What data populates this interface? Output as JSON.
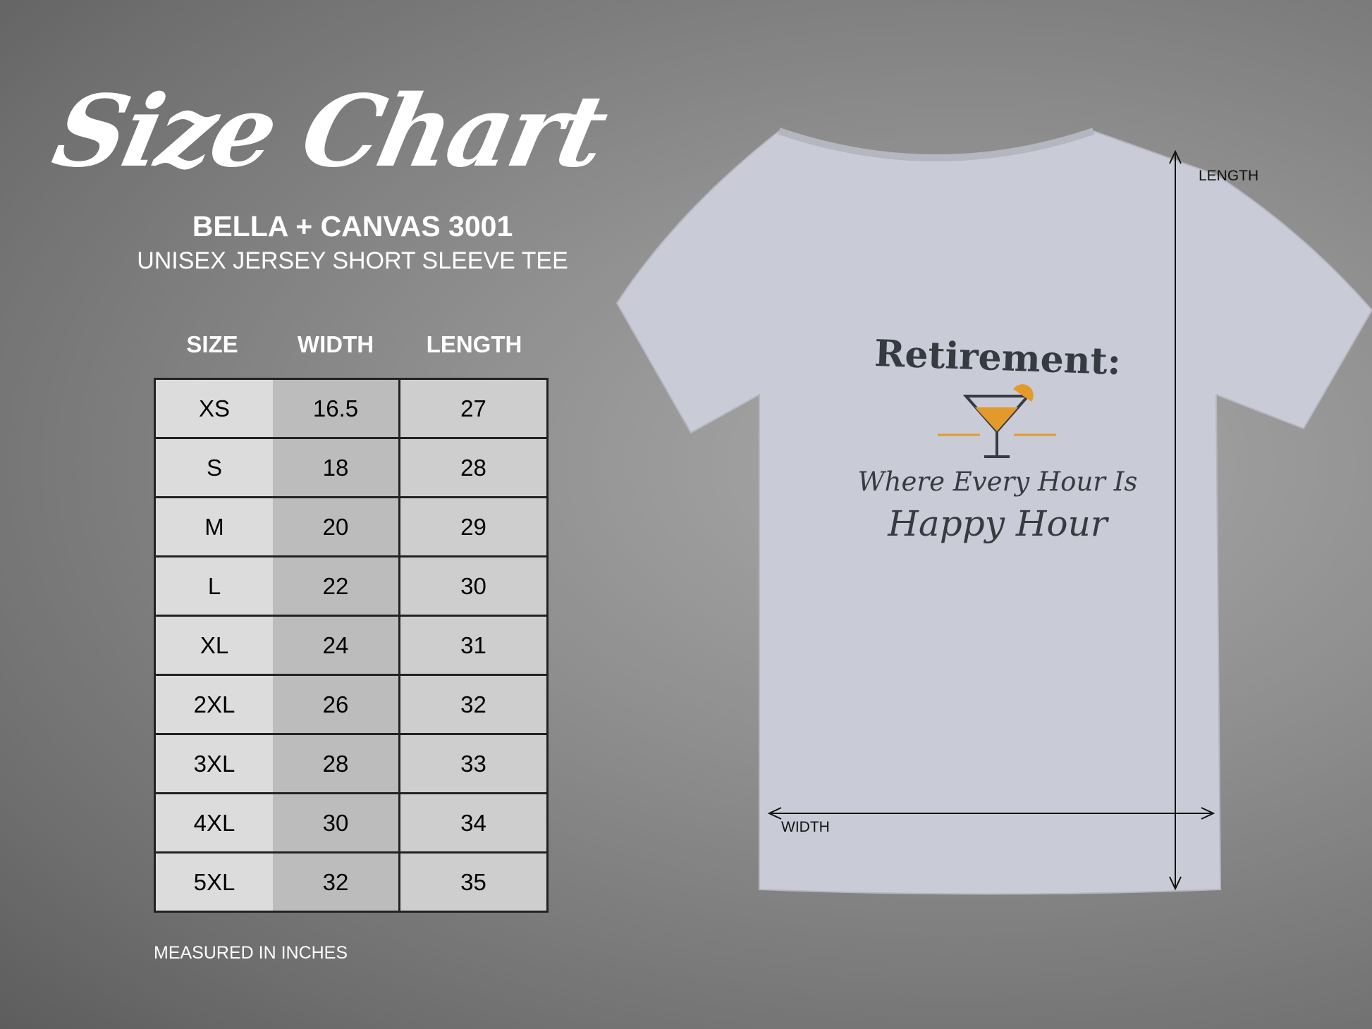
{
  "title": "Size Chart",
  "brand": "BELLA + CANVAS 3001",
  "model": "UNISEX JERSEY SHORT SLEEVE TEE",
  "headers": [
    "SIZE",
    "WIDTH",
    "LENGTH"
  ],
  "rows": [
    [
      "XS",
      "16.5",
      "27"
    ],
    [
      "S",
      "18",
      "28"
    ],
    [
      "M",
      "20",
      "29"
    ],
    [
      "L",
      "22",
      "30"
    ],
    [
      "XL",
      "24",
      "31"
    ],
    [
      "2XL",
      "26",
      "32"
    ],
    [
      "3XL",
      "28",
      "33"
    ],
    [
      "4XL",
      "30",
      "34"
    ],
    [
      "5XL",
      "32",
      "35"
    ]
  ],
  "footnote": "MEASURED IN INCHES",
  "shirt": {
    "color": "#c9ccd6",
    "length_label": "LENGTH",
    "width_label": "WIDTH",
    "design": {
      "line1": "Retirement:",
      "line2": "Where Every Hour Is",
      "line3": "Happy Hour",
      "accent": "#e39a2a",
      "ink": "#353b40"
    }
  }
}
